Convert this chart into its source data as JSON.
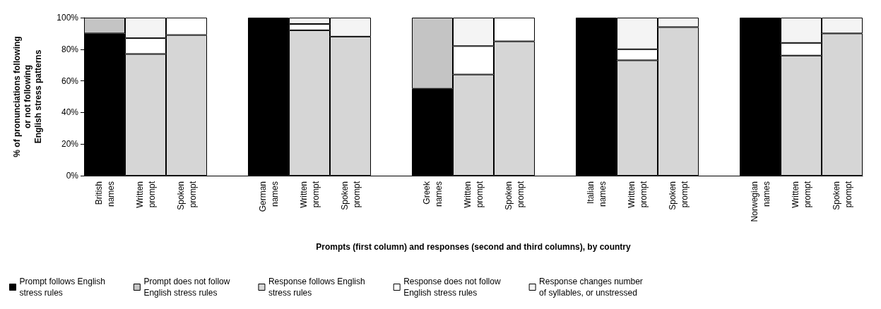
{
  "chart_data": {
    "type": "bar",
    "stacked": true,
    "xlabel": "Prompts (first column) and responses (second and third columns), by country",
    "ylabel": "% of pronunciations following\nor not following\nEnglish stress patterns",
    "categories": [
      "British\nnames",
      "Written\nprompt",
      "Spoken\nprompt",
      null,
      "German\nnames",
      "Written\nprompt",
      "Spoken\nprompt",
      null,
      "Greek\nnames",
      "Written\nprompt",
      "Spoken\nprompt",
      null,
      "Italian\nnames",
      "Written\nprompt",
      "Spoken\nprompt",
      null,
      "Norwegian\nnames",
      "Written\nprompt",
      "Spoken\nprompt"
    ],
    "series": [
      {
        "name": "Prompt follows English\nstress rules",
        "color": "#000000",
        "values": [
          90,
          null,
          null,
          null,
          100,
          null,
          null,
          null,
          55,
          null,
          null,
          null,
          100,
          null,
          null,
          null,
          100,
          null,
          null
        ]
      },
      {
        "name": "Prompt does not follow\nEnglish stress rules",
        "color": "#c4c4c4",
        "values": [
          10,
          null,
          null,
          null,
          null,
          null,
          null,
          null,
          45,
          null,
          null,
          null,
          null,
          null,
          null,
          null,
          null,
          null,
          null
        ]
      },
      {
        "name": "Response follows English\nstress rules",
        "color": "#d6d6d6",
        "values": [
          null,
          77,
          89,
          null,
          null,
          92,
          88,
          null,
          null,
          64,
          85,
          null,
          null,
          73,
          94,
          null,
          null,
          76,
          90
        ]
      },
      {
        "name": "Response does not follow\nEnglish stress rules",
        "color": "#ffffff",
        "values": [
          null,
          10,
          11,
          null,
          null,
          4,
          null,
          null,
          null,
          18,
          15,
          null,
          null,
          7,
          null,
          null,
          null,
          8,
          null
        ]
      },
      {
        "name": "Response changes number\nof syllables, or unstressed",
        "color": "#f4f4f4",
        "values": [
          null,
          13,
          null,
          null,
          null,
          4,
          12,
          null,
          null,
          18,
          null,
          null,
          null,
          20,
          6,
          null,
          null,
          16,
          10
        ]
      }
    ],
    "ylim": [
      0,
      100
    ],
    "yticks": [
      {
        "value": 0,
        "label": "0%"
      },
      {
        "value": 20,
        "label": "20%"
      },
      {
        "value": 40,
        "label": "40%"
      },
      {
        "value": 60,
        "label": "60%"
      },
      {
        "value": 80,
        "label": "80%"
      },
      {
        "value": 100,
        "label": "100%"
      }
    ],
    "grid": false,
    "legend": "bottom"
  }
}
